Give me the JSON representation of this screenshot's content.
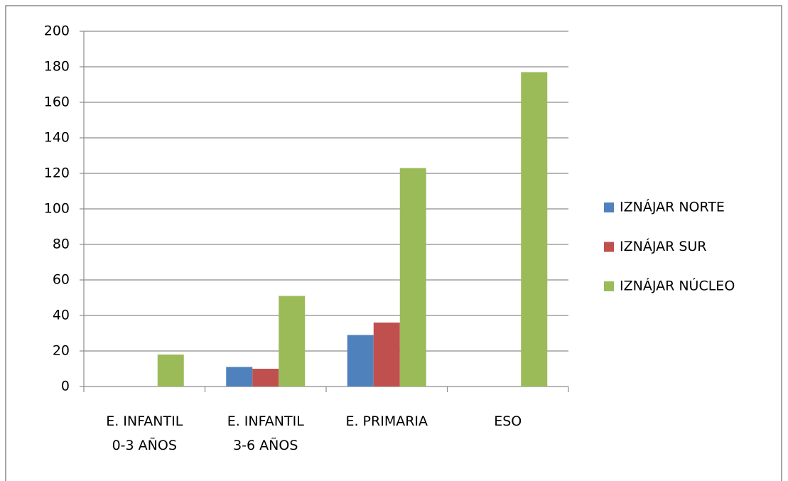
{
  "chart_data": {
    "type": "bar",
    "categories": [
      "E. INFANTIL\n0-3 AÑOS",
      "E. INFANTIL\n3-6 AÑOS",
      "E. PRIMARIA",
      "ESO"
    ],
    "series": [
      {
        "name": "IZNÁJAR NORTE",
        "color": "#4f81bd",
        "values": [
          0,
          11,
          29,
          0
        ]
      },
      {
        "name": "IZNÁJAR SUR",
        "color": "#c0504d",
        "values": [
          0,
          10,
          36,
          0
        ]
      },
      {
        "name": "IZNÁJAR NÚCLEO",
        "color": "#9bbb59",
        "values": [
          18,
          51,
          123,
          177
        ]
      }
    ],
    "ylim": [
      0,
      200
    ],
    "yticks": [
      0,
      20,
      40,
      60,
      80,
      100,
      120,
      140,
      160,
      180,
      200
    ],
    "grid": true,
    "legend": "right"
  }
}
